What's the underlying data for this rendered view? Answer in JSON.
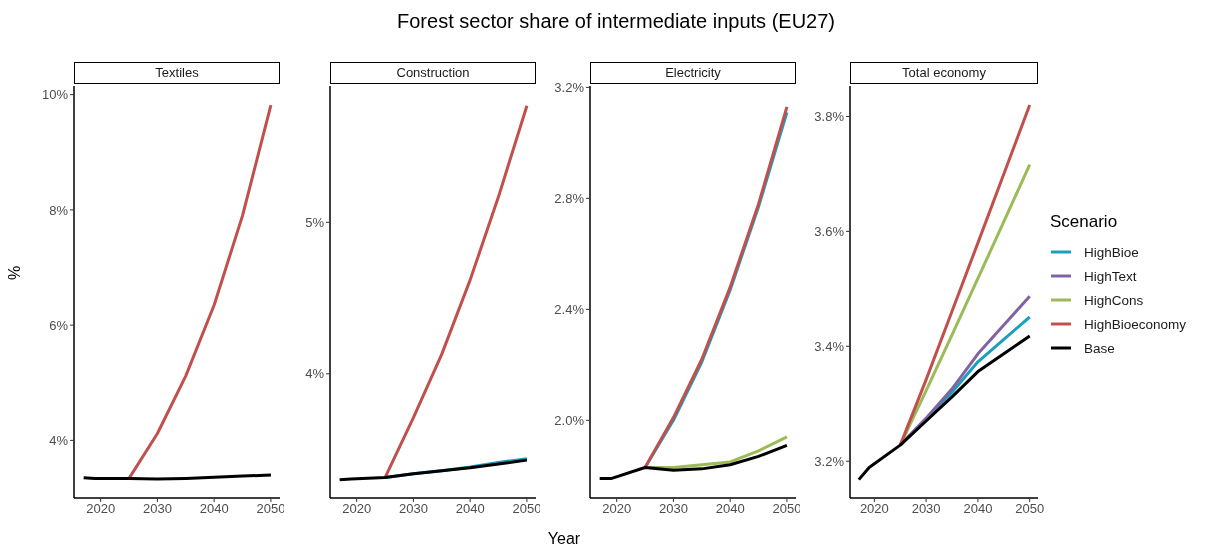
{
  "chart_data": [
    {
      "type": "line",
      "title": "Textiles",
      "annotations": [
        "Forest sector share of intermediate inputs (EU27)"
      ],
      "ylabel": "%",
      "x": [
        2017,
        2019,
        2025,
        2030,
        2035,
        2040,
        2045,
        2050
      ],
      "xlim": [
        2015.3,
        2051.6
      ],
      "xticks": [
        2020,
        2030,
        2040,
        2050
      ],
      "ylim": [
        3.0,
        10.15
      ],
      "yticks": [
        {
          "value": 4,
          "label": "4%"
        },
        {
          "value": 6,
          "label": "6%"
        },
        {
          "value": 8,
          "label": "8%"
        },
        {
          "value": 10,
          "label": "10%"
        }
      ],
      "grid": false,
      "legend": false,
      "series": [
        {
          "color": "#c0504d",
          "values": [
            null,
            null,
            3.34,
            4.12,
            5.12,
            6.35,
            7.9,
            9.82
          ]
        },
        {
          "color": "#000000",
          "values": [
            3.35,
            3.34,
            3.34,
            3.33,
            3.34,
            3.36,
            3.38,
            3.4
          ]
        }
      ]
    },
    {
      "type": "line",
      "title": "Construction",
      "x": [
        2017,
        2019,
        2025,
        2030,
        2035,
        2040,
        2045,
        2050
      ],
      "xlim": [
        2015.3,
        2051.6
      ],
      "xticks": [
        2020,
        2030,
        2040,
        2050
      ],
      "ylim": [
        3.18,
        5.9
      ],
      "yticks": [
        {
          "value": 4,
          "label": "4%"
        },
        {
          "value": 5,
          "label": "5%"
        }
      ],
      "grid": false,
      "legend": false,
      "series": [
        {
          "color": "#1b9fbf",
          "values": [
            null,
            null,
            3.315,
            3.34,
            3.36,
            3.385,
            3.415,
            3.44
          ]
        },
        {
          "color": "#c0504d",
          "values": [
            null,
            null,
            3.315,
            3.71,
            4.13,
            4.62,
            5.17,
            5.77
          ]
        },
        {
          "color": "#000000",
          "values": [
            3.3,
            3.305,
            3.315,
            3.34,
            3.36,
            3.38,
            3.405,
            3.43
          ]
        }
      ]
    },
    {
      "type": "line",
      "title": "Electricity",
      "xlabel": "Year",
      "x": [
        2017,
        2019,
        2025,
        2030,
        2035,
        2040,
        2045,
        2050
      ],
      "xlim": [
        2015.3,
        2051.6
      ],
      "xticks": [
        2020,
        2030,
        2040,
        2050
      ],
      "ylim": [
        1.72,
        3.205
      ],
      "yticks": [
        {
          "value": 2.0,
          "label": "2.0%"
        },
        {
          "value": 2.4,
          "label": "2.4%"
        },
        {
          "value": 2.8,
          "label": "2.8%"
        },
        {
          "value": 3.2,
          "label": "3.2%"
        }
      ],
      "grid": false,
      "legend": false,
      "series": [
        {
          "color": "#1b9fbf",
          "values": [
            null,
            null,
            1.83,
            2.0,
            2.21,
            2.47,
            2.77,
            3.11
          ]
        },
        {
          "color": "#9bbb59",
          "values": [
            null,
            null,
            1.83,
            1.83,
            1.84,
            1.85,
            1.89,
            1.94
          ]
        },
        {
          "color": "#c0504d",
          "values": [
            null,
            null,
            1.83,
            2.01,
            2.22,
            2.48,
            2.78,
            3.13
          ]
        },
        {
          "color": "#000000",
          "values": [
            1.79,
            1.79,
            1.83,
            1.82,
            1.825,
            1.84,
            1.87,
            1.91
          ]
        }
      ]
    },
    {
      "type": "line",
      "title": "Total economy",
      "x": [
        2017,
        2019,
        2025,
        2030,
        2035,
        2040,
        2045,
        2050
      ],
      "xlim": [
        2015.3,
        2051.6
      ],
      "xticks": [
        2020,
        2030,
        2040,
        2050
      ],
      "ylim": [
        3.136,
        3.853
      ],
      "yticks": [
        {
          "value": 3.2,
          "label": "3.2%"
        },
        {
          "value": 3.4,
          "label": "3.4%"
        },
        {
          "value": 3.6,
          "label": "3.6%"
        },
        {
          "value": 3.8,
          "label": "3.8%"
        }
      ],
      "grid": false,
      "legend": "right",
      "legend_title": "Scenario",
      "series": [
        {
          "name": "HighBioe",
          "color": "#1b9fbf",
          "values": [
            null,
            null,
            3.228,
            3.273,
            3.32,
            3.373,
            3.412,
            3.451
          ]
        },
        {
          "name": "HighText",
          "color": "#8064a2",
          "values": [
            null,
            null,
            3.228,
            3.275,
            3.326,
            3.387,
            3.437,
            3.487
          ]
        },
        {
          "name": "HighCons",
          "color": "#9bbb59",
          "values": [
            null,
            null,
            3.228,
            3.323,
            3.42,
            3.518,
            3.617,
            3.716
          ]
        },
        {
          "name": "HighBioeconomy",
          "color": "#c0504d",
          "values": [
            null,
            null,
            3.228,
            3.342,
            3.461,
            3.58,
            3.7,
            3.82
          ]
        },
        {
          "name": "Base",
          "color": "#000000",
          "values": [
            3.168,
            3.189,
            3.228,
            3.27,
            3.312,
            3.356,
            3.387,
            3.418
          ]
        }
      ]
    }
  ]
}
